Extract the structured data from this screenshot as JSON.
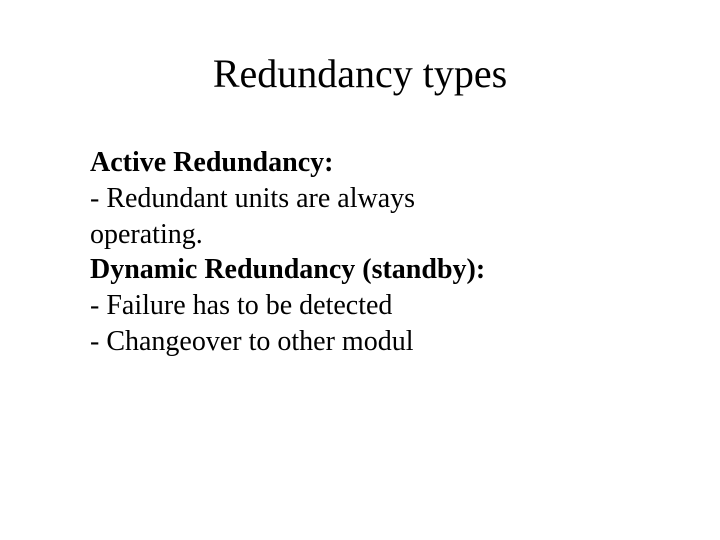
{
  "slide": {
    "title": "Redundancy types",
    "title_fontsize": 40,
    "body_fontsize": 28,
    "background_color": "#ffffff",
    "text_color": "#000000",
    "font_family": "Times New Roman",
    "lines": [
      {
        "text": "Active Redundancy:",
        "bold": true
      },
      {
        "text": "- Redundant units are always",
        "bold": false
      },
      {
        "text": "operating.",
        "bold": false
      },
      {
        "text": "Dynamic Redundancy (standby):",
        "bold": true
      },
      {
        "text": "- Failure has to be detected",
        "bold": false
      },
      {
        "text": "- Changeover to other modul",
        "bold": false
      }
    ]
  }
}
